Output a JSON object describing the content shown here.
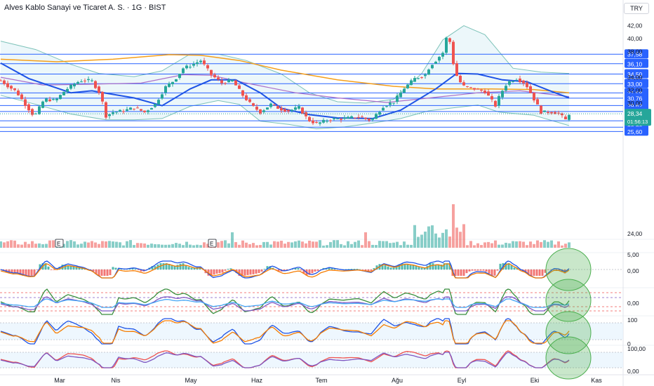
{
  "header": {
    "symbol_title": "Alves Kablo Sanayi ve Ticaret A. S. · 1G · BIST",
    "currency_button": "TRY"
  },
  "colors": {
    "up": "#26a69a",
    "down": "#ef5350",
    "hline": "#2962ff",
    "ma_short": "#1e53e5",
    "ma_mid": "#ab6fc9",
    "ma_long": "#f59f1a",
    "bb_band": "#5fb4a8",
    "bb_fill": "#e4f3f8",
    "oscillator_signal": "#f57c00",
    "highlight_circle": "#4caf50"
  },
  "price_axis": {
    "ticks": [
      "42,00",
      "40,00",
      "38,00",
      "34,00",
      "32,00",
      "30,00",
      "24,00"
    ]
  },
  "horizontal_levels": [
    {
      "value": 37.58,
      "label": "37,58"
    },
    {
      "value": 36.1,
      "label": "36,10"
    },
    {
      "value": 34.5,
      "label": "34,50"
    },
    {
      "value": 33.0,
      "label": "33,00"
    },
    {
      "value": 31.58,
      "label": "31,58"
    },
    {
      "value": 30.76,
      "label": "30,76"
    },
    {
      "value": 29.62,
      "label": "29,62"
    },
    {
      "value": 28.7,
      "label": "28,70"
    },
    {
      "value": 27.26,
      "label": "27,26"
    },
    {
      "value": 26.26,
      "label": "26,26"
    },
    {
      "value": 25.6,
      "label": "25,60"
    }
  ],
  "current_price": {
    "value": 28.34,
    "label": "28,34",
    "countdown": "01:56:13"
  },
  "earnings_markers": [
    {
      "label": "E",
      "month": "Mar"
    },
    {
      "label": "E",
      "month": "May"
    }
  ],
  "indicator_axes": [
    {
      "pane": "macd",
      "ticks": [
        "5,00",
        "0,00"
      ]
    },
    {
      "pane": "oscillator-2",
      "ticks": [
        "0,00"
      ]
    },
    {
      "pane": "stochastic",
      "ticks": [
        "100",
        "0"
      ]
    },
    {
      "pane": "stoch-rsi",
      "ticks": [
        "100,00",
        "0,00"
      ]
    }
  ],
  "time_axis": {
    "labels": [
      "Mar",
      "Nis",
      "May",
      "Haz",
      "Tem",
      "Ağu",
      "Eyl",
      "Eki",
      "Kas"
    ]
  },
  "chart_data": {
    "type": "candlestick",
    "title": "Alves Kablo Sanayi ve Ticaret A. S. · 1G · BIST",
    "interval": "1D",
    "y_range": [
      24.0,
      42.5
    ],
    "anchors": [
      [
        0,
        33.5
      ],
      [
        12,
        32.5
      ],
      [
        22,
        31.8
      ],
      [
        35,
        29.8
      ],
      [
        48,
        27.9
      ],
      [
        62,
        30.6
      ],
      [
        78,
        30.4
      ],
      [
        92,
        32.0
      ],
      [
        108,
        33.2
      ],
      [
        118,
        33.6
      ],
      [
        130,
        33.4
      ],
      [
        142,
        31.4
      ],
      [
        150,
        28.0
      ],
      [
        160,
        28.6
      ],
      [
        175,
        28.8
      ],
      [
        190,
        29.3
      ],
      [
        205,
        28.6
      ],
      [
        220,
        29.8
      ],
      [
        235,
        32.5
      ],
      [
        248,
        33.6
      ],
      [
        260,
        35.4
      ],
      [
        270,
        35.8
      ],
      [
        285,
        36.6
      ],
      [
        300,
        34.4
      ],
      [
        315,
        33.1
      ],
      [
        330,
        33.5
      ],
      [
        345,
        31.2
      ],
      [
        358,
        29.6
      ],
      [
        370,
        28.6
      ],
      [
        385,
        29.8
      ],
      [
        398,
        29.1
      ],
      [
        410,
        28.8
      ],
      [
        425,
        29.3
      ],
      [
        438,
        27.4
      ],
      [
        450,
        26.8
      ],
      [
        470,
        27.5
      ],
      [
        490,
        27.6
      ],
      [
        510,
        27.9
      ],
      [
        528,
        27.3
      ],
      [
        545,
        29.5
      ],
      [
        560,
        30.2
      ],
      [
        575,
        32.3
      ],
      [
        590,
        33.8
      ],
      [
        605,
        34.4
      ],
      [
        612,
        35.8
      ],
      [
        620,
        36.6
      ],
      [
        630,
        37.8
      ],
      [
        636,
        40.5
      ],
      [
        640,
        39.5
      ],
      [
        646,
        35.5
      ],
      [
        652,
        33.6
      ],
      [
        660,
        32.6
      ],
      [
        675,
        32.2
      ],
      [
        690,
        31.8
      ],
      [
        705,
        29.6
      ],
      [
        712,
        31.4
      ],
      [
        722,
        33.2
      ],
      [
        735,
        33.8
      ],
      [
        748,
        33.0
      ],
      [
        760,
        30.6
      ],
      [
        770,
        28.6
      ],
      [
        785,
        28.6
      ],
      [
        795,
        28.4
      ],
      [
        805,
        27.4
      ],
      [
        810,
        28.34
      ]
    ],
    "ma_short": [
      [
        0,
        36.2
      ],
      [
        40,
        33.8
      ],
      [
        100,
        31.6
      ],
      [
        130,
        31.9
      ],
      [
        190,
        30.8
      ],
      [
        230,
        29.6
      ],
      [
        270,
        32.2
      ],
      [
        300,
        33.6
      ],
      [
        335,
        33.6
      ],
      [
        370,
        31.6
      ],
      [
        400,
        29.2
      ],
      [
        440,
        28.2
      ],
      [
        480,
        27.7
      ],
      [
        530,
        27.6
      ],
      [
        570,
        28.9
      ],
      [
        620,
        32.2
      ],
      [
        650,
        34.6
      ],
      [
        680,
        34.5
      ],
      [
        715,
        33.6
      ],
      [
        750,
        33.3
      ],
      [
        790,
        31.6
      ],
      [
        810,
        30.8
      ]
    ],
    "ma_mid": [
      [
        0,
        34.0
      ],
      [
        60,
        32.8
      ],
      [
        120,
        32.9
      ],
      [
        200,
        33.1
      ],
      [
        260,
        34.4
      ],
      [
        300,
        34.3
      ],
      [
        350,
        33.1
      ],
      [
        420,
        31.6
      ],
      [
        480,
        30.8
      ],
      [
        550,
        30.1
      ],
      [
        620,
        30.9
      ],
      [
        680,
        31.6
      ],
      [
        740,
        31.9
      ],
      [
        810,
        31.0
      ]
    ],
    "ma_long": [
      [
        0,
        36.8
      ],
      [
        80,
        36.4
      ],
      [
        160,
        36.8
      ],
      [
        240,
        37.5
      ],
      [
        285,
        37.4
      ],
      [
        340,
        36.6
      ],
      [
        400,
        35.1
      ],
      [
        480,
        33.6
      ],
      [
        560,
        32.6
      ],
      [
        620,
        32.2
      ],
      [
        700,
        32.2
      ],
      [
        760,
        32.1
      ],
      [
        810,
        31.6
      ]
    ],
    "bb_upper": [
      [
        0,
        39.6
      ],
      [
        50,
        38.3
      ],
      [
        100,
        36.0
      ],
      [
        140,
        34.6
      ],
      [
        190,
        34.1
      ],
      [
        230,
        35.0
      ],
      [
        270,
        37.6
      ],
      [
        310,
        37.6
      ],
      [
        350,
        36.6
      ],
      [
        400,
        34.5
      ],
      [
        440,
        31.6
      ],
      [
        480,
        30.2
      ],
      [
        520,
        30.0
      ],
      [
        560,
        30.6
      ],
      [
        600,
        34.6
      ],
      [
        630,
        39.8
      ],
      [
        660,
        42.0
      ],
      [
        690,
        40.6
      ],
      [
        730,
        35.4
      ],
      [
        770,
        34.8
      ],
      [
        810,
        34.6
      ]
    ],
    "bb_lower": [
      [
        0,
        31.2
      ],
      [
        50,
        29.8
      ],
      [
        100,
        28.3
      ],
      [
        150,
        27.4
      ],
      [
        190,
        27.4
      ],
      [
        230,
        27.6
      ],
      [
        270,
        29.5
      ],
      [
        310,
        30.4
      ],
      [
        340,
        29.8
      ],
      [
        370,
        27.2
      ],
      [
        410,
        26.7
      ],
      [
        450,
        26.0
      ],
      [
        490,
        26.3
      ],
      [
        530,
        26.9
      ],
      [
        570,
        27.6
      ],
      [
        610,
        28.8
      ],
      [
        640,
        29.2
      ],
      [
        680,
        29.7
      ],
      [
        710,
        28.6
      ],
      [
        760,
        28.1
      ],
      [
        810,
        26.5
      ]
    ]
  }
}
